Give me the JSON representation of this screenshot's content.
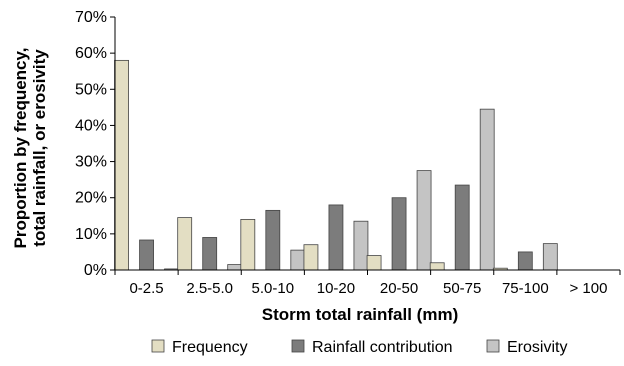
{
  "chart_data": {
    "type": "bar",
    "xlabel": "Storm total rainfall (mm)",
    "ylabel_lines": [
      "Proportion by frequency,",
      "total rainfall, or erosivity"
    ],
    "categories": [
      "0-2.5",
      "2.5-5.0",
      "5.0-10",
      "10-20",
      "20-50",
      "50-75",
      "75-100",
      "> 100"
    ],
    "ylim": [
      0,
      70
    ],
    "yticks": [
      "0%",
      "10%",
      "20%",
      "30%",
      "40%",
      "50%",
      "60%",
      "70%"
    ],
    "ytick_values": [
      0,
      10,
      20,
      30,
      40,
      50,
      60,
      70
    ],
    "grid": false,
    "legend_position": "bottom",
    "series": [
      {
        "name": "Frequency",
        "color": "#e3dec3",
        "values": [
          58,
          14.5,
          14,
          7,
          4,
          2,
          0.5,
          0
        ]
      },
      {
        "name": "Rainfall contribution",
        "color": "#7c7c7c",
        "values": [
          8.3,
          9,
          16.5,
          18,
          20,
          23.5,
          5,
          0
        ]
      },
      {
        "name": "Erosivity",
        "color": "#c4c4c4",
        "values": [
          0.3,
          1.5,
          5.5,
          13.5,
          27.5,
          44.5,
          7.3,
          0
        ]
      }
    ]
  }
}
